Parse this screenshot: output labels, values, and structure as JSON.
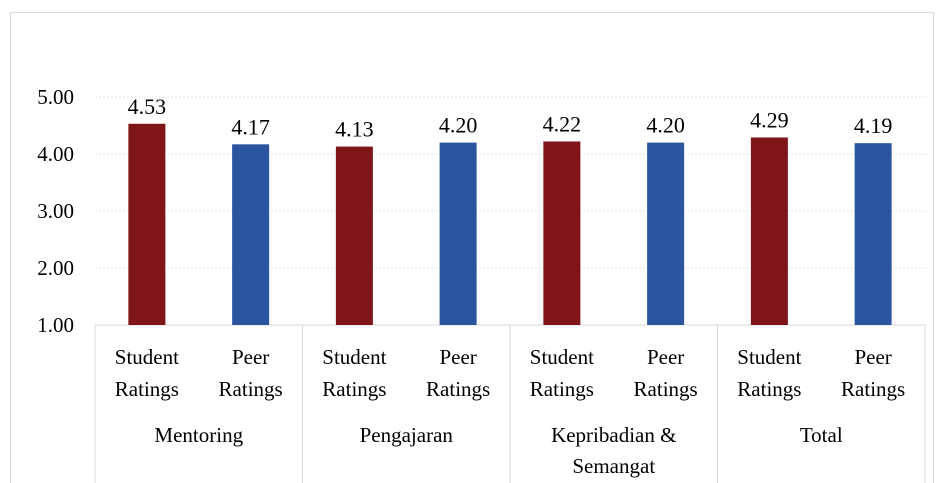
{
  "chart_data": {
    "type": "bar",
    "ylim": [
      1.0,
      5.0
    ],
    "yticks": [
      "1.00",
      "2.00",
      "3.00",
      "4.00",
      "5.00"
    ],
    "grid": true,
    "groups": [
      {
        "label_lines": [
          "Mentoring"
        ],
        "bars": [
          {
            "label_lines": [
              "Student",
              "Ratings"
            ],
            "value": 4.53,
            "value_label": "4.53",
            "series": "student"
          },
          {
            "label_lines": [
              "Peer",
              "Ratings"
            ],
            "value": 4.17,
            "value_label": "4.17",
            "series": "peer"
          }
        ]
      },
      {
        "label_lines": [
          "Pengajaran"
        ],
        "bars": [
          {
            "label_lines": [
              "Student",
              "Ratings"
            ],
            "value": 4.13,
            "value_label": "4.13",
            "series": "student"
          },
          {
            "label_lines": [
              "Peer",
              "Ratings"
            ],
            "value": 4.2,
            "value_label": "4.20",
            "series": "peer"
          }
        ]
      },
      {
        "label_lines": [
          "Kepribadian &",
          "Semangat"
        ],
        "bars": [
          {
            "label_lines": [
              "Student",
              "Ratings"
            ],
            "value": 4.22,
            "value_label": "4.22",
            "series": "student"
          },
          {
            "label_lines": [
              "Peer",
              "Ratings"
            ],
            "value": 4.2,
            "value_label": "4.20",
            "series": "peer"
          }
        ]
      },
      {
        "label_lines": [
          "Total"
        ],
        "bars": [
          {
            "label_lines": [
              "Student",
              "Ratings"
            ],
            "value": 4.29,
            "value_label": "4.29",
            "series": "student"
          },
          {
            "label_lines": [
              "Peer",
              "Ratings"
            ],
            "value": 4.19,
            "value_label": "4.19",
            "series": "peer"
          }
        ]
      }
    ],
    "colors": {
      "student": "#7f1519",
      "peer": "#2c55a0"
    }
  }
}
